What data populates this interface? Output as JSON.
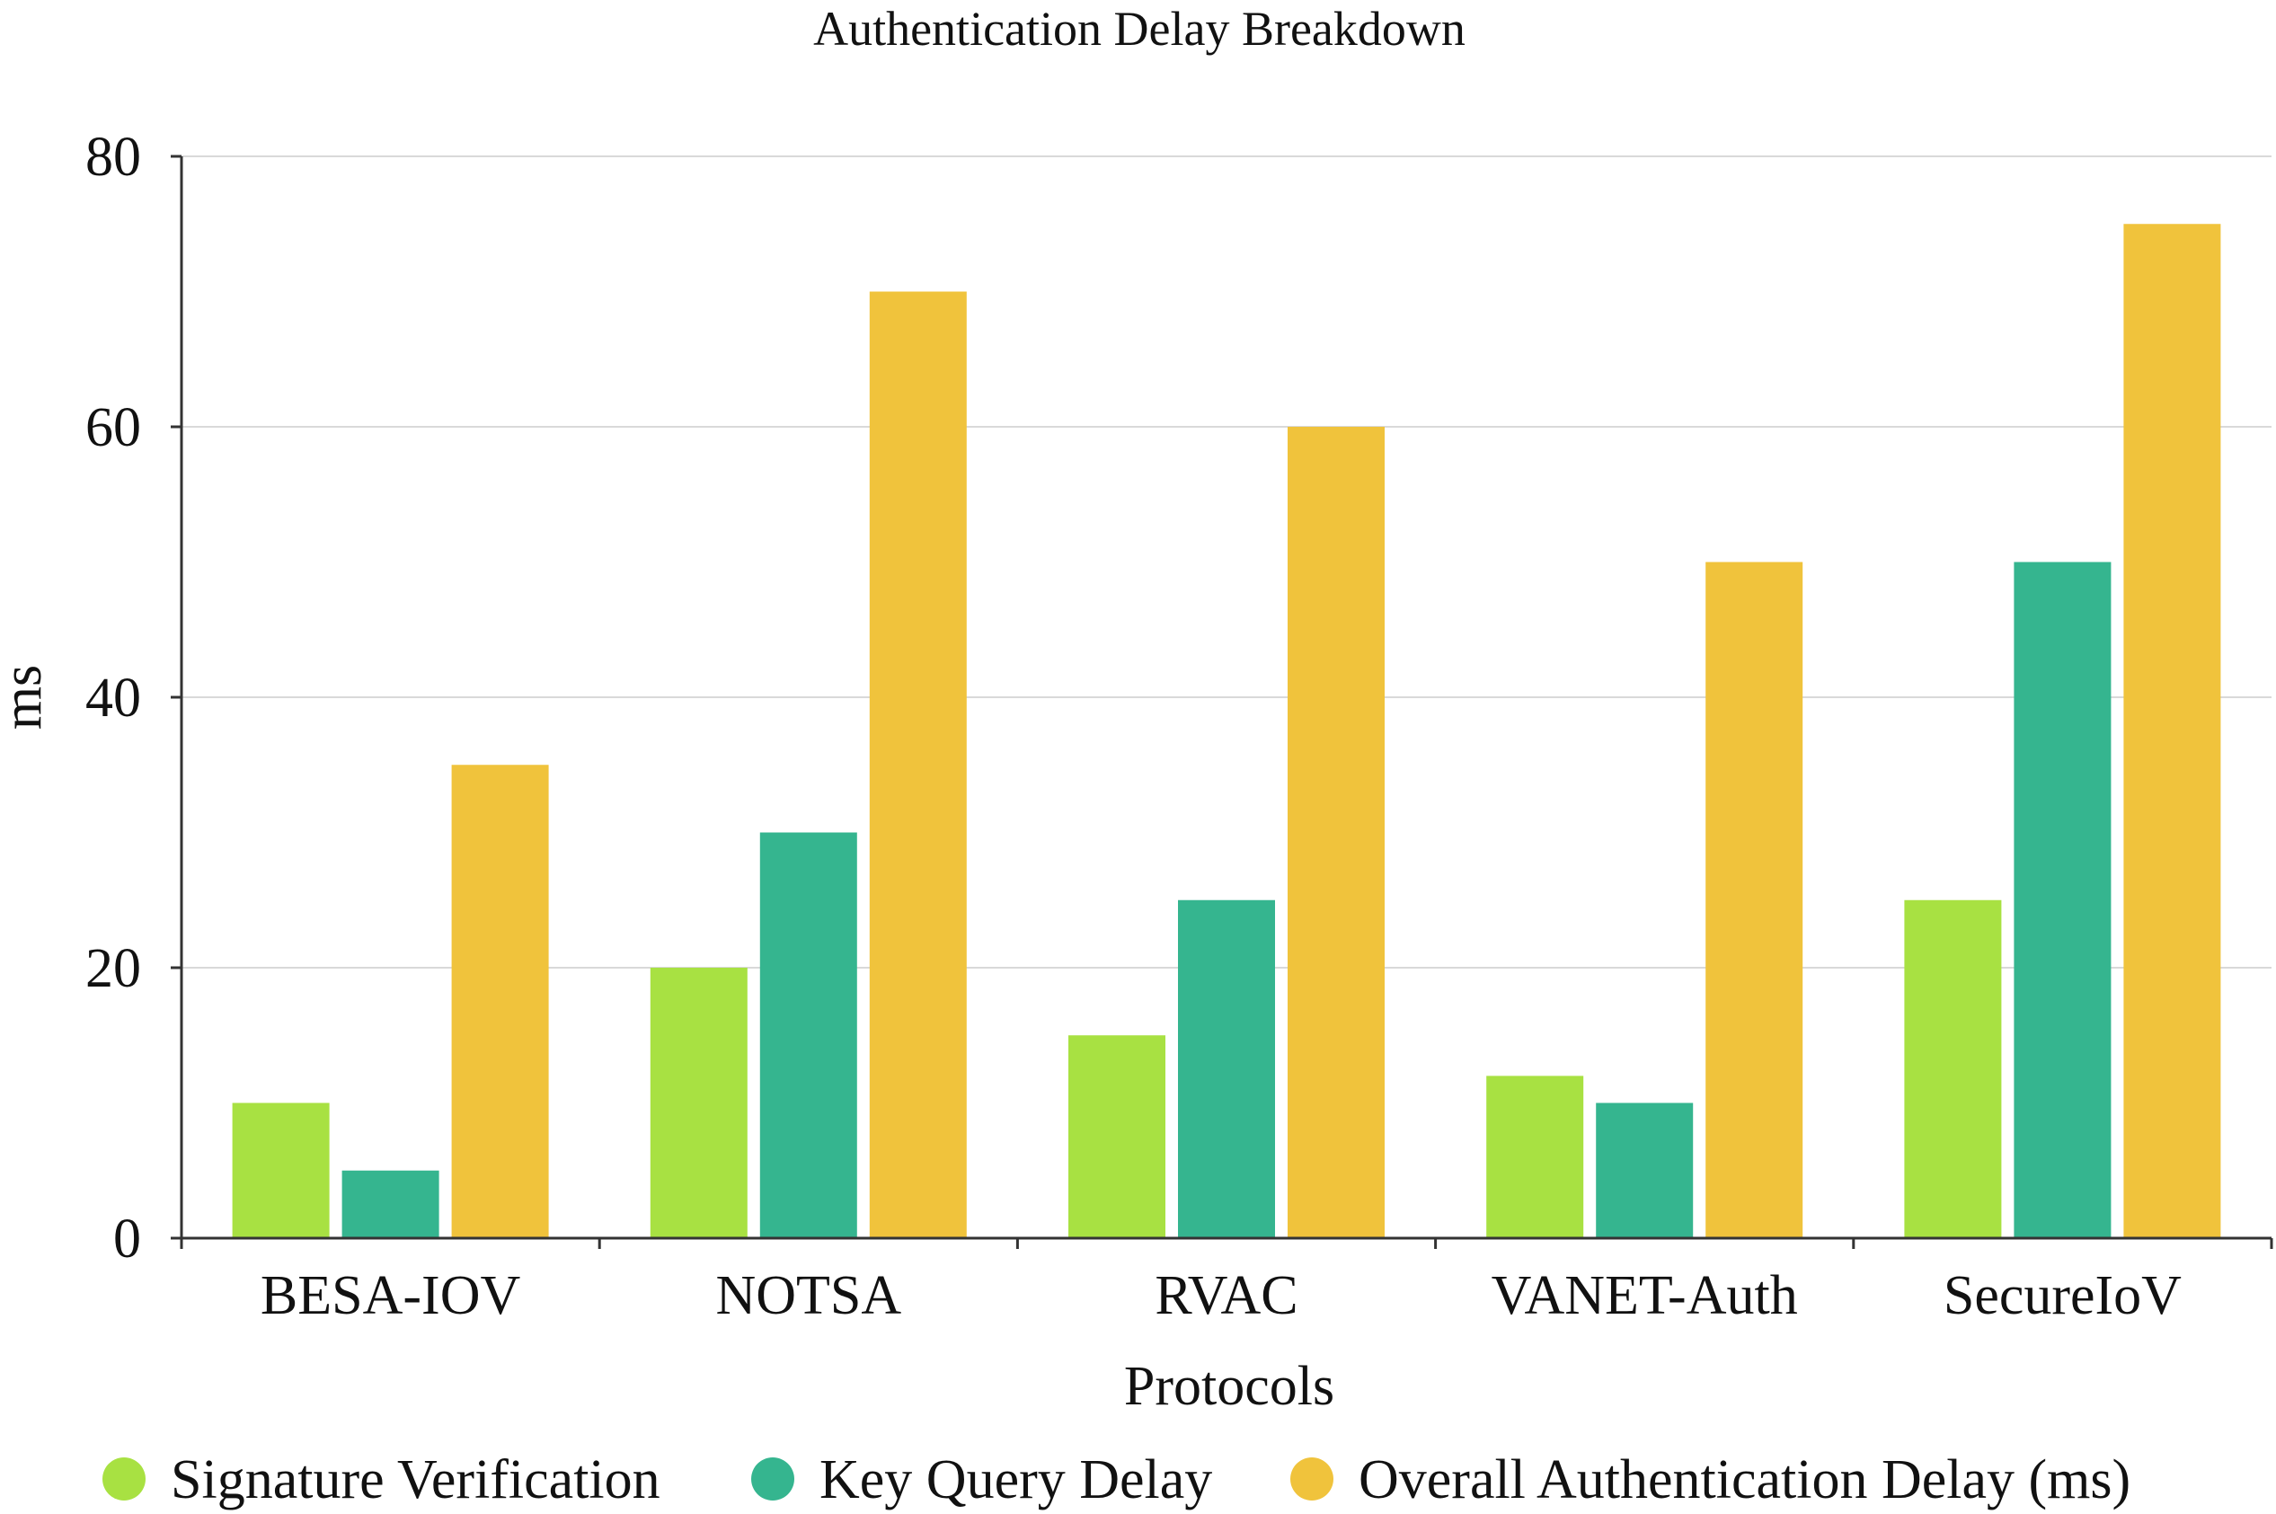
{
  "chart_data": {
    "type": "bar",
    "title": "Authentication Delay Breakdown",
    "xlabel": "Protocols",
    "ylabel": "ms",
    "categories": [
      "BESA-IOV",
      "NOTSA",
      "RVAC",
      "VANET-Auth",
      "SecureIoV"
    ],
    "series": [
      {
        "name": "Signature Verification",
        "values": [
          10,
          20,
          15,
          12,
          25
        ],
        "color": "#a8e142"
      },
      {
        "name": "Key Query Delay",
        "values": [
          5,
          30,
          25,
          10,
          50
        ],
        "color": "#35b58f"
      },
      {
        "name": "Overall Authentication Delay (ms)",
        "values": [
          35,
          70,
          60,
          50,
          75
        ],
        "color": "#f0c33c"
      }
    ],
    "ylim": [
      0,
      80
    ],
    "yticks": [
      0,
      20,
      40,
      60,
      80
    ],
    "grid": true,
    "legend_position": "bottom"
  }
}
